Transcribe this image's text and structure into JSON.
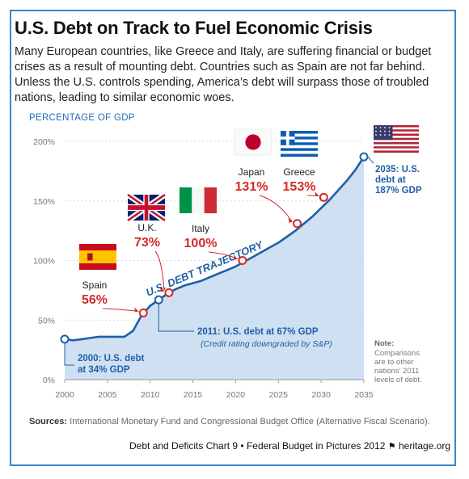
{
  "title": "U.S. Debt on Track to Fuel Economic Crisis",
  "subtitle": "Many European countries, like Greece and Italy, are suffering financial or budget crises as a result of mounting debt. Countries such as Spain are not far behind. Unless the U.S. controls spending, America’s debt will surpass those of troubled nations, leading to similar economic woes.",
  "footer": {
    "sources_label": "Sources:",
    "sources_text": "International Monetary Fund and Congressional Budget Office (Alternative Fiscal Scenario).",
    "chart_id": "Debt and Deficits Chart 9",
    "separator": "•",
    "publication": "Federal Budget in Pictures 2012",
    "site": "heritage.org",
    "bell_icon": "bell-icon"
  },
  "colors": {
    "area_fill": "#c5daee",
    "line": "#1f5fa8",
    "marker_red": "#d22b2b",
    "accent_blue": "#1f6fb5",
    "frame": "#3a86c8"
  },
  "chart_data": {
    "type": "area",
    "ylabel": "PERCENTAGE OF GDP",
    "xlim": [
      2000,
      2035
    ],
    "ylim": [
      0,
      200
    ],
    "x_ticks": [
      "2000",
      "2005",
      "2010",
      "2015",
      "2020",
      "2025",
      "2030",
      "2035"
    ],
    "y_ticks": [
      "0%",
      "50%",
      "100%",
      "150%",
      "200%"
    ],
    "grid": true,
    "series": [
      {
        "name": "U.S. DEBT TRAJECTORY",
        "x": [
          2000,
          2001,
          2002,
          2003,
          2004,
          2005,
          2006,
          2007,
          2008,
          2009,
          2010,
          2011,
          2012,
          2013,
          2014,
          2015,
          2016,
          2017,
          2018,
          2019,
          2020,
          2021,
          2022,
          2023,
          2024,
          2025,
          2026,
          2027,
          2028,
          2029,
          2030,
          2031,
          2032,
          2033,
          2034,
          2035
        ],
        "y": [
          34,
          33,
          34,
          35,
          36,
          36,
          36,
          36,
          41,
          54,
          62,
          67,
          72,
          76,
          79,
          81,
          83,
          86,
          89,
          92,
          95,
          99,
          103,
          107,
          111,
          115,
          120,
          125,
          131,
          137,
          144,
          151,
          159,
          167,
          176,
          187
        ]
      }
    ],
    "annotations": [
      {
        "name": "Spain",
        "value_label": "56%",
        "flag": "spain-flag",
        "year": 2009.2,
        "value": 56,
        "kind": "country"
      },
      {
        "name": "U.K.",
        "value_label": "73%",
        "flag": "uk-flag",
        "year": 2012.2,
        "value": 73,
        "kind": "country"
      },
      {
        "name": "Italy",
        "value_label": "100%",
        "flag": "italy-flag",
        "year": 2020.8,
        "value": 100,
        "kind": "country"
      },
      {
        "name": "Japan",
        "value_label": "131%",
        "flag": "japan-flag",
        "year": 2027.2,
        "value": 131,
        "kind": "country"
      },
      {
        "name": "Greece",
        "value_label": "153%",
        "flag": "greece-flag",
        "year": 2030.3,
        "value": 153,
        "kind": "country"
      },
      {
        "year": 2000,
        "value": 34,
        "kind": "us",
        "lines": [
          "2000: U.S. debt",
          "at 34% GDP"
        ]
      },
      {
        "year": 2011,
        "value": 67,
        "kind": "us",
        "lines": [
          "2011: U.S. debt at 67% GDP",
          "(Credit rating downgraded by S&P)"
        ]
      },
      {
        "year": 2035,
        "value": 187,
        "kind": "us",
        "lines": [
          "2035: U.S.",
          "debt at",
          "187% GDP"
        ],
        "flag": "usa-flag"
      }
    ],
    "note": {
      "title": "Note:",
      "lines": [
        "Comparisons",
        "are to other",
        "nations’ 2011",
        "levels of debt."
      ]
    }
  }
}
